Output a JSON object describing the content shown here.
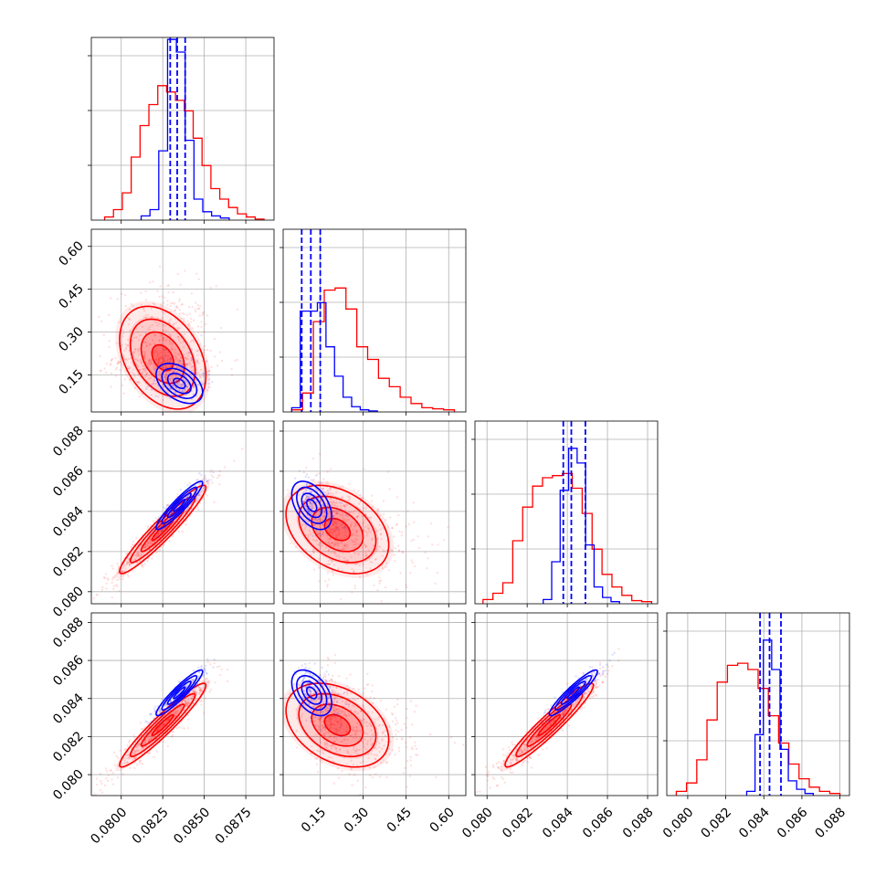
{
  "chart_data": {
    "type": "corner",
    "title": "",
    "grid": true,
    "dims": [
      {
        "index": 0,
        "range": [
          0.0782,
          0.0892
        ],
        "ticks": [
          0.08,
          0.0825,
          0.085,
          0.0875
        ],
        "tick_labels": [
          "0.0800",
          "0.0825",
          "0.0850",
          "0.0875"
        ]
      },
      {
        "index": 1,
        "range": [
          0.02,
          0.66
        ],
        "ticks": [
          0.15,
          0.3,
          0.45,
          0.6
        ],
        "tick_labels": [
          "0.15",
          "0.30",
          "0.45",
          "0.60"
        ]
      },
      {
        "index": 2,
        "range": [
          0.0794,
          0.0885
        ],
        "ticks": [
          0.08,
          0.082,
          0.084,
          0.086,
          0.088
        ],
        "tick_labels": [
          "0.080",
          "0.082",
          "0.084",
          "0.086",
          "0.088"
        ]
      },
      {
        "index": 3,
        "range": [
          0.0789,
          0.0885
        ],
        "ticks": [
          0.08,
          0.082,
          0.084,
          0.086,
          0.088
        ],
        "tick_labels": [
          "0.080",
          "0.082",
          "0.084",
          "0.086",
          "0.088"
        ]
      }
    ],
    "series": [
      {
        "color": "#ff0000",
        "mean": [
          0.0825,
          0.21,
          0.0831,
          0.0826
        ],
        "sd": [
          0.0013,
          0.09,
          0.0011,
          0.0011
        ],
        "corr": [
          [
            1,
            -0.35,
            0.95,
            0.95
          ],
          [
            -0.35,
            1,
            -0.35,
            -0.35
          ],
          [
            0.95,
            -0.35,
            1,
            0.95
          ],
          [
            0.95,
            -0.35,
            0.95,
            1
          ]
        ],
        "hist": [
          {
            "values": [
              0.015,
              0.05,
              0.13,
              0.3,
              0.45,
              0.55,
              0.64,
              0.61,
              0.57,
              0.52,
              0.39,
              0.26,
              0.15,
              0.1,
              0.06,
              0.03,
              0.015,
              0.005
            ],
            "range": [
              0.079,
              0.0886
            ]
          },
          {
            "values": [
              0.01,
              0.09,
              0.43,
              0.58,
              0.59,
              0.49,
              0.31,
              0.25,
              0.16,
              0.12,
              0.07,
              0.04,
              0.02,
              0.015,
              0.01
            ],
            "range": [
              0.05,
              0.62
            ]
          },
          {
            "values": [
              0.02,
              0.05,
              0.1,
              0.3,
              0.46,
              0.56,
              0.6,
              0.61,
              0.62,
              0.55,
              0.43,
              0.26,
              0.14,
              0.08,
              0.04,
              0.015,
              0.01
            ],
            "range": [
              0.0798,
              0.0882
            ]
          },
          {
            "values": [
              0.02,
              0.06,
              0.17,
              0.36,
              0.54,
              0.62,
              0.63,
              0.6,
              0.51,
              0.38,
              0.25,
              0.15,
              0.08,
              0.04,
              0.02,
              0.01
            ],
            "range": [
              0.0794,
              0.088
            ]
          }
        ]
      },
      {
        "color": "#0000ff",
        "mean": [
          0.0835,
          0.12,
          0.0843,
          0.0843
        ],
        "sd": [
          0.0007,
          0.035,
          0.0006,
          0.0006
        ],
        "corr": [
          [
            1,
            -0.45,
            0.93,
            0.93
          ],
          [
            -0.45,
            1,
            -0.45,
            -0.45
          ],
          [
            0.93,
            -0.45,
            1,
            0.93
          ],
          [
            0.93,
            -0.45,
            0.93,
            1
          ]
        ],
        "quantile_lines": [
          [
            0.08295,
            0.08337,
            0.08385
          ],
          [
            0.085,
            0.117,
            0.15
          ],
          [
            0.0838,
            0.0842,
            0.0849
          ],
          [
            0.0838,
            0.0843,
            0.0849
          ]
        ],
        "hist": [
          {
            "values": [
              0.02,
              0.05,
              0.33,
              0.86,
              0.8,
              0.38,
              0.1,
              0.04,
              0.02,
              0.01
            ],
            "range": [
              0.0812,
              0.0865
            ]
          },
          {
            "values": [
              0.02,
              0.48,
              0.48,
              0.52,
              0.31,
              0.17,
              0.07,
              0.025,
              0.01,
              0.005
            ],
            "range": [
              0.05,
              0.35
            ]
          },
          {
            "values": [
              0.02,
              0.2,
              0.54,
              0.74,
              0.67,
              0.28,
              0.08,
              0.03,
              0.01
            ],
            "range": [
              0.0828,
              0.0866
            ]
          },
          {
            "values": [
              0.02,
              0.29,
              0.74,
              0.6,
              0.22,
              0.07,
              0.03,
              0.01
            ],
            "range": [
              0.0831,
              0.0866
            ]
          }
        ]
      }
    ]
  }
}
